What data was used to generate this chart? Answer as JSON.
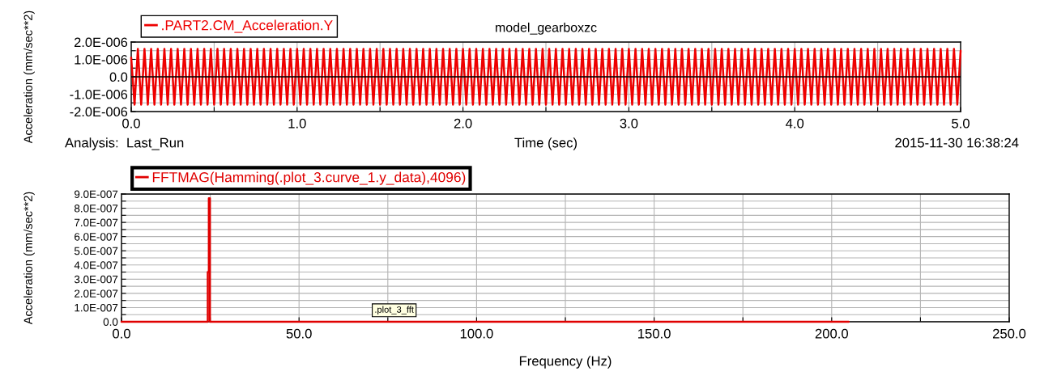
{
  "chart_data": [
    {
      "type": "line",
      "title": "model_gearboxzc",
      "xlabel": "Time (sec)",
      "ylabel": "Acceleration (mm/sec**2)",
      "annotations": [
        "Analysis:  Last_Run",
        "2015-11-30 16:38:24"
      ],
      "xlim": [
        0,
        5
      ],
      "ylim": [
        -2e-06,
        2e-06
      ],
      "xticks": [
        {
          "value": 0,
          "label": "0.0"
        },
        {
          "value": 0.5,
          "label": null
        },
        {
          "value": 1,
          "label": "1.0"
        },
        {
          "value": 1.5,
          "label": null
        },
        {
          "value": 2,
          "label": "2.0"
        },
        {
          "value": 2.5,
          "label": null
        },
        {
          "value": 3,
          "label": "3.0"
        },
        {
          "value": 3.5,
          "label": null
        },
        {
          "value": 4,
          "label": "4.0"
        },
        {
          "value": 4.5,
          "label": null
        },
        {
          "value": 5,
          "label": "5.0"
        }
      ],
      "yticks": [
        {
          "value": -2e-06,
          "label": "-2.0E-006"
        },
        {
          "value": -1.5e-06,
          "label": null
        },
        {
          "value": -1e-06,
          "label": "-1.0E-006"
        },
        {
          "value": -5e-07,
          "label": null
        },
        {
          "value": 0,
          "label": "0.0"
        },
        {
          "value": 5e-07,
          "label": null
        },
        {
          "value": 1e-06,
          "label": "1.0E-006"
        },
        {
          "value": 1.5e-06,
          "label": null
        },
        {
          "value": 2e-06,
          "label": "2.0E-006"
        }
      ],
      "grid": true,
      "legend": "top left",
      "ref_lines": [
        {
          "axis": "y",
          "value": 0,
          "color": "#000000"
        }
      ],
      "series": [
        {
          "name": ".PART2.CM_Acceleration.Y",
          "color": "#ee0000",
          "x": [
            0,
            0.02,
            0.04,
            0.06,
            0.08,
            0.1,
            0.12,
            0.14,
            0.16,
            0.18,
            0.2,
            0.22,
            0.24,
            0.26,
            0.28,
            0.3,
            0.32,
            0.34,
            0.36,
            0.38,
            0.4,
            0.42,
            0.44,
            0.46,
            0.48,
            0.5,
            0.52,
            0.54,
            0.56,
            0.58,
            0.6,
            0.62,
            0.64,
            0.66,
            0.68,
            0.7,
            0.72,
            0.74,
            0.76,
            0.78,
            0.8,
            0.82,
            0.84,
            0.86,
            0.88,
            0.9,
            0.92,
            0.94,
            0.96,
            0.98,
            1,
            1.02,
            1.04,
            1.06,
            1.08,
            1.1,
            1.12,
            1.14,
            1.16,
            1.18,
            1.2,
            1.22,
            1.24,
            1.26,
            1.28,
            1.3,
            1.32,
            1.34,
            1.36,
            1.38,
            1.4,
            1.42,
            1.44,
            1.46,
            1.48,
            1.5,
            1.52,
            1.54,
            1.56,
            1.58,
            1.6,
            1.62,
            1.64,
            1.66,
            1.68,
            1.7,
            1.72,
            1.74,
            1.76,
            1.78,
            1.8,
            1.82,
            1.84,
            1.86,
            1.88,
            1.9,
            1.92,
            1.94,
            1.96,
            1.98,
            2,
            2.02,
            2.04,
            2.06,
            2.08,
            2.1,
            2.12,
            2.14,
            2.16,
            2.18,
            2.2,
            2.22,
            2.24,
            2.26,
            2.28,
            2.3,
            2.32,
            2.34,
            2.36,
            2.38,
            2.4,
            2.42,
            2.44,
            2.46,
            2.48,
            2.5,
            2.52,
            2.54,
            2.56,
            2.58,
            2.6,
            2.62,
            2.64,
            2.66,
            2.68,
            2.7,
            2.72,
            2.74,
            2.76,
            2.78,
            2.8,
            2.82,
            2.84,
            2.86,
            2.88,
            2.9,
            2.92,
            2.94,
            2.96,
            2.98,
            3,
            3.02,
            3.04,
            3.06,
            3.08,
            3.1,
            3.12,
            3.14,
            3.16,
            3.18,
            3.2,
            3.22,
            3.24,
            3.26,
            3.28,
            3.3,
            3.32,
            3.34,
            3.36,
            3.38,
            3.4,
            3.42,
            3.44,
            3.46,
            3.48,
            3.5,
            3.52,
            3.54,
            3.56,
            3.58,
            3.6,
            3.62,
            3.64,
            3.66,
            3.68,
            3.7,
            3.72,
            3.74,
            3.76,
            3.78,
            3.8,
            3.82,
            3.84,
            3.86,
            3.88,
            3.9,
            3.92,
            3.94,
            3.96,
            3.98,
            4,
            4.02,
            4.04,
            4.06,
            4.08,
            4.1,
            4.12,
            4.14,
            4.16,
            4.18,
            4.2,
            4.22,
            4.24,
            4.26,
            4.28,
            4.3,
            4.32,
            4.34,
            4.36,
            4.38,
            4.4,
            4.42,
            4.44,
            4.46,
            4.48,
            4.5,
            4.52,
            4.54,
            4.56,
            4.58,
            4.6,
            4.62,
            4.64,
            4.66,
            4.68,
            4.7,
            4.72,
            4.74,
            4.76,
            4.78,
            4.8,
            4.82,
            4.84,
            4.86,
            4.88,
            4.9,
            4.92,
            4.94,
            4.96,
            4.98,
            5
          ],
          "values": [
            1.1e-06,
            -1.6e-06,
            1.6e-06,
            -1.6e-06,
            1.6e-06,
            -1.6e-06,
            1.6e-06,
            -1.6e-06,
            1.6e-06,
            -1.6e-06,
            1.6e-06,
            -1.6e-06,
            1.6e-06,
            -1.6e-06,
            1.6e-06,
            -1.6e-06,
            1.6e-06,
            -1.6e-06,
            1.6e-06,
            -1.6e-06,
            1.6e-06,
            -1.6e-06,
            1.6e-06,
            -1.6e-06,
            1.6e-06,
            -1.6e-06,
            1.6e-06,
            -1.6e-06,
            1.6e-06,
            -1.6e-06,
            1.6e-06,
            -1.6e-06,
            1.6e-06,
            -1.6e-06,
            1.6e-06,
            -1.6e-06,
            1.6e-06,
            -1.6e-06,
            1.6e-06,
            -1.6e-06,
            1.6e-06,
            -1.6e-06,
            1.6e-06,
            -1.6e-06,
            1.6e-06,
            -1.6e-06,
            1.6e-06,
            -1.6e-06,
            1.6e-06,
            -1.6e-06,
            1.6e-06,
            -1.6e-06,
            1.6e-06,
            -1.6e-06,
            1.6e-06,
            -1.6e-06,
            1.6e-06,
            -1.6e-06,
            1.6e-06,
            -1.6e-06,
            1.6e-06,
            -1.6e-06,
            1.6e-06,
            -1.6e-06,
            1.6e-06,
            -1.6e-06,
            1.6e-06,
            -1.6e-06,
            1.6e-06,
            -1.6e-06,
            1.6e-06,
            -1.6e-06,
            1.6e-06,
            -1.6e-06,
            1.6e-06,
            -1.6e-06,
            1.6e-06,
            -1.6e-06,
            1.6e-06,
            -1.6e-06,
            1.6e-06,
            -1.6e-06,
            1.6e-06,
            -1.6e-06,
            1.6e-06,
            -1.6e-06,
            1.6e-06,
            -1.6e-06,
            1.6e-06,
            -1.6e-06,
            1.6e-06,
            -1.6e-06,
            1.6e-06,
            -1.6e-06,
            1.6e-06,
            -1.6e-06,
            1.6e-06,
            -1.6e-06,
            1.6e-06,
            -1.6e-06,
            1.6e-06,
            -1.6e-06,
            1.6e-06,
            -1.6e-06,
            1.6e-06,
            -1.6e-06,
            1.6e-06,
            -1.6e-06,
            1.6e-06,
            -1.6e-06,
            1.6e-06,
            -1.6e-06,
            1.6e-06,
            -1.6e-06,
            1.6e-06,
            -1.6e-06,
            1.6e-06,
            -1.6e-06,
            1.6e-06,
            -1.6e-06,
            1.6e-06,
            -1.6e-06,
            1.6e-06,
            -1.6e-06,
            1.6e-06,
            -1.6e-06,
            1.6e-06,
            -1.6e-06,
            1.6e-06,
            -1.6e-06,
            1.6e-06,
            -1.6e-06,
            1.6e-06,
            -1.6e-06,
            1.6e-06,
            -1.6e-06,
            1.6e-06,
            -1.6e-06,
            1.6e-06,
            -1.6e-06,
            1.6e-06,
            -1.6e-06,
            1.6e-06,
            -1.6e-06,
            1.6e-06,
            -1.6e-06,
            1.6e-06,
            -1.6e-06,
            1.6e-06,
            -1.6e-06,
            1.6e-06,
            -1.6e-06,
            1.6e-06,
            -1.6e-06,
            1.6e-06,
            -1.6e-06,
            1.6e-06,
            -1.6e-06,
            1.6e-06,
            -1.6e-06,
            1.6e-06,
            -1.6e-06,
            1.6e-06,
            -1.6e-06,
            1.6e-06,
            -1.6e-06,
            1.6e-06,
            -1.6e-06,
            1.6e-06,
            -1.6e-06,
            1.6e-06,
            -1.6e-06,
            1.6e-06,
            -1.6e-06,
            1.6e-06,
            -1.6e-06,
            1.6e-06,
            -1.6e-06,
            1.6e-06,
            -1.6e-06,
            1.6e-06,
            -1.6e-06,
            1.6e-06,
            -1.6e-06,
            1.6e-06,
            -1.6e-06,
            1.6e-06,
            -1.6e-06,
            1.6e-06,
            -1.6e-06,
            1.6e-06,
            -1.6e-06,
            1.6e-06,
            -1.6e-06,
            1.6e-06,
            -1.6e-06,
            1.6e-06,
            -1.6e-06,
            1.6e-06,
            -1.6e-06,
            1.6e-06,
            -1.6e-06,
            1.6e-06,
            -1.6e-06,
            1.6e-06,
            -1.6e-06,
            1.6e-06,
            -1.6e-06,
            1.6e-06,
            -1.6e-06,
            1.6e-06,
            -1.6e-06,
            1.6e-06,
            -1.6e-06,
            1.6e-06,
            -1.6e-06,
            1.6e-06,
            -1.6e-06,
            1.6e-06,
            -1.6e-06,
            1.6e-06,
            -1.6e-06,
            1.6e-06,
            -1.6e-06,
            1.6e-06,
            -1.6e-06,
            1.6e-06,
            -1.6e-06,
            1.6e-06,
            -1.6e-06,
            1.6e-06,
            -1.6e-06,
            1.6e-06,
            -1.6e-06,
            1.6e-06,
            -1.6e-06,
            1.6e-06,
            -1.6e-06,
            1.6e-06,
            -1.6e-06,
            1.6e-06,
            -1.6e-06,
            1.6e-06,
            -1.6e-06,
            1.6e-06,
            -1.6e-06,
            1.6e-06,
            -1.6e-06,
            1.6e-06,
            -1.6e-06,
            1.5e-06
          ]
        }
      ]
    },
    {
      "type": "line",
      "xlabel": "Frequency (Hz)",
      "ylabel": "Acceleration (mm/sec**2)",
      "annotations": [
        ".plot_3_fft"
      ],
      "xlim": [
        0,
        250
      ],
      "ylim": [
        0,
        9e-07
      ],
      "xticks": [
        {
          "value": 0,
          "label": "0.0"
        },
        {
          "value": 25,
          "label": null
        },
        {
          "value": 50,
          "label": "50.0"
        },
        {
          "value": 75,
          "label": null
        },
        {
          "value": 100,
          "label": "100.0"
        },
        {
          "value": 125,
          "label": null
        },
        {
          "value": 150,
          "label": "150.0"
        },
        {
          "value": 175,
          "label": null
        },
        {
          "value": 200,
          "label": "200.0"
        },
        {
          "value": 225,
          "label": null
        },
        {
          "value": 250,
          "label": "250.0"
        }
      ],
      "yticks": [
        {
          "value": 0,
          "label": "0.0"
        },
        {
          "value": 5e-08,
          "label": null
        },
        {
          "value": 1e-07,
          "label": "1.0E-007"
        },
        {
          "value": 1.5e-07,
          "label": null
        },
        {
          "value": 2e-07,
          "label": "2.0E-007"
        },
        {
          "value": 2.5e-07,
          "label": null
        },
        {
          "value": 3e-07,
          "label": "3.0E-007"
        },
        {
          "value": 3.5e-07,
          "label": null
        },
        {
          "value": 4e-07,
          "label": "4.0E-007"
        },
        {
          "value": 4.5e-07,
          "label": null
        },
        {
          "value": 5e-07,
          "label": "5.0E-007"
        },
        {
          "value": 5.5e-07,
          "label": null
        },
        {
          "value": 6e-07,
          "label": "6.0E-007"
        },
        {
          "value": 6.5e-07,
          "label": null
        },
        {
          "value": 7e-07,
          "label": "7.0E-007"
        },
        {
          "value": 7.5e-07,
          "label": null
        },
        {
          "value": 8e-07,
          "label": "8.0E-007"
        },
        {
          "value": 8.5e-07,
          "label": null
        },
        {
          "value": 9e-07,
          "label": "9.0E-007"
        }
      ],
      "grid": true,
      "legend": "top left",
      "series": [
        {
          "name": "FFTMAG(Hamming(.plot_3.curve_1.y_data),4096)",
          "color": "#e00000",
          "x": [
            0,
            24.3,
            24.3,
            24.6,
            24.6,
            24.9,
            24.9,
            204.8
          ],
          "values": [
            0,
            0,
            3.5e-07,
            3.5e-07,
            8.7e-07,
            8.7e-07,
            0,
            0
          ]
        }
      ]
    }
  ]
}
